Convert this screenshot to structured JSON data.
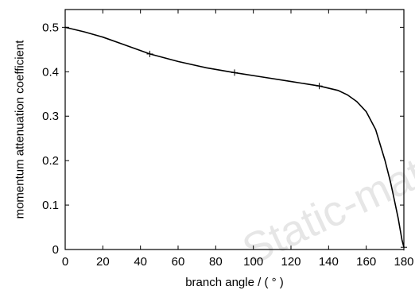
{
  "chart_data": {
    "type": "line",
    "title": "",
    "xlabel": "branch angle / ( ° )",
    "ylabel": "momentum attenuation coefficient",
    "xlim": [
      0,
      180
    ],
    "ylim": [
      0,
      0.54
    ],
    "xticks": [
      0,
      20,
      40,
      60,
      80,
      100,
      120,
      140,
      160,
      180
    ],
    "yticks": [
      0,
      0.1,
      0.2,
      0.3,
      0.4,
      0.5
    ],
    "xtick_labels": [
      "0",
      "20",
      "40",
      "60",
      "80",
      "100",
      "120",
      "140",
      "160",
      "180"
    ],
    "ytick_labels": [
      "0",
      "0.1",
      "0.2",
      "0.3",
      "0.4",
      "0.5"
    ],
    "grid": false,
    "legend": "none",
    "line_color": "#000000",
    "series": [
      {
        "x": [
          0,
          10,
          20,
          30,
          45,
          60,
          75,
          90,
          105,
          120,
          135,
          145,
          150,
          155,
          160,
          165,
          170,
          173,
          175,
          177,
          178,
          179,
          180
        ],
        "y": [
          0.5,
          0.49,
          0.478,
          0.463,
          0.44,
          0.423,
          0.409,
          0.398,
          0.388,
          0.378,
          0.368,
          0.358,
          0.348,
          0.333,
          0.31,
          0.27,
          0.2,
          0.15,
          0.11,
          0.07,
          0.045,
          0.022,
          0.005
        ]
      }
    ],
    "markers": {
      "style": "plus",
      "x": [
        0,
        45,
        90,
        135,
        180
      ],
      "y": [
        0.5,
        0.44,
        0.398,
        0.368,
        0.005
      ]
    }
  },
  "watermark_text": "Static-material"
}
